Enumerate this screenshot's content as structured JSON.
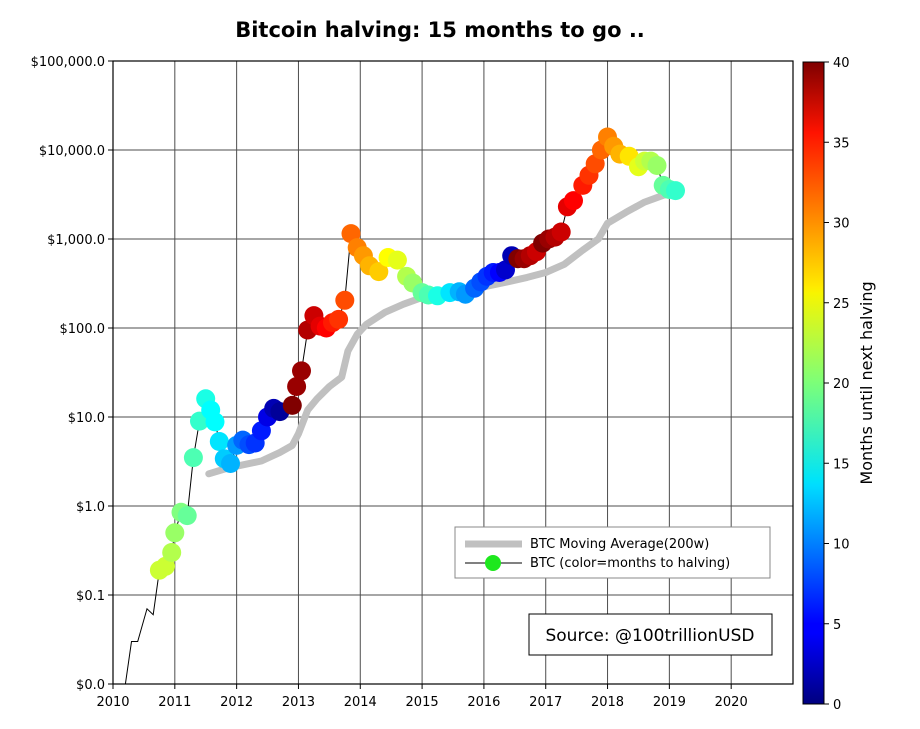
{
  "chart_data": {
    "type": "scatter",
    "title": "Bitcoin halving: 15 months to go ..",
    "y_scale": "log",
    "xlim": [
      2010.0,
      2021.0
    ],
    "ylim": [
      0.01,
      100000
    ],
    "x_ticks": [
      2010,
      2011,
      2012,
      2013,
      2014,
      2015,
      2016,
      2017,
      2018,
      2019,
      2020
    ],
    "x_tick_labels": [
      "2010",
      "2011",
      "2012",
      "2013",
      "2014",
      "2015",
      "2016",
      "2017",
      "2018",
      "2019",
      "2020"
    ],
    "y_ticks": [
      0.01,
      0.1,
      1,
      10,
      100,
      1000,
      10000,
      100000
    ],
    "y_tick_labels": [
      "$0.0",
      "$0.1",
      "$1.0",
      "$10.0",
      "$100.0",
      "$1,000.0",
      "$10,000.0",
      "$100,000.0"
    ],
    "grid": true,
    "colorbar": {
      "label": "Months until next halving",
      "range": [
        0,
        40
      ],
      "ticks": [
        0,
        5,
        10,
        15,
        20,
        25,
        30,
        35,
        40
      ],
      "tick_labels": [
        "0",
        "5",
        "10",
        "15",
        "20",
        "25",
        "30",
        "35",
        "40"
      ],
      "colormap": "jet"
    },
    "legend": {
      "position": "lower-right",
      "entries": [
        "BTC Moving Average(200w)",
        "BTC (color=months to halving)"
      ]
    },
    "annotation": "Source: @100trillionUSD",
    "series": [
      {
        "name": "BTC Moving Average(200w)",
        "kind": "line",
        "color": "#c0c0c0",
        "x": [
          2011.55,
          2011.8,
          2012.0,
          2012.4,
          2012.7,
          2012.9,
          2013.0,
          2013.15,
          2013.3,
          2013.5,
          2013.7,
          2013.8,
          2013.95,
          2014.1,
          2014.4,
          2014.7,
          2015.0,
          2015.3,
          2015.6,
          2016.0,
          2016.3,
          2016.7,
          2017.0,
          2017.3,
          2017.6,
          2017.85,
          2018.0,
          2018.3,
          2018.6,
          2018.9,
          2019.1
        ],
        "y": [
          2.3,
          2.6,
          2.8,
          3.2,
          4.0,
          4.8,
          6.5,
          12,
          16,
          22,
          28,
          55,
          85,
          110,
          150,
          185,
          220,
          240,
          260,
          290,
          320,
          370,
          420,
          520,
          750,
          1000,
          1500,
          2000,
          2600,
          3100,
          3300
        ]
      },
      {
        "name": "BTC (color=months to halving)",
        "kind": "scatter-line",
        "x": [
          2010.2,
          2010.3,
          2010.4,
          2010.55,
          2010.65,
          2010.75,
          2010.85,
          2010.95,
          2011.0,
          2011.1,
          2011.2,
          2011.3,
          2011.4,
          2011.5,
          2011.58,
          2011.65,
          2011.72,
          2011.8,
          2011.9,
          2012.0,
          2012.1,
          2012.2,
          2012.3,
          2012.4,
          2012.5,
          2012.6,
          2012.7,
          2012.9,
          2012.97,
          2013.05,
          2013.15,
          2013.25,
          2013.35,
          2013.45,
          2013.55,
          2013.65,
          2013.75,
          2013.85,
          2013.95,
          2014.05,
          2014.15,
          2014.3,
          2014.45,
          2014.6,
          2014.75,
          2014.85,
          2015.0,
          2015.1,
          2015.25,
          2015.45,
          2015.6,
          2015.7,
          2015.85,
          2015.95,
          2016.05,
          2016.15,
          2016.25,
          2016.35,
          2016.45,
          2016.55,
          2016.65,
          2016.75,
          2016.85,
          2016.95,
          2017.05,
          2017.15,
          2017.25,
          2017.35,
          2017.45,
          2017.6,
          2017.7,
          2017.8,
          2017.9,
          2018.0,
          2018.1,
          2018.2,
          2018.35,
          2018.5,
          2018.6,
          2018.7,
          2018.8,
          2018.9,
          2019.0,
          2019.1
        ],
        "y": [
          0.01,
          0.03,
          0.03,
          0.07,
          0.06,
          0.19,
          0.21,
          0.3,
          0.5,
          0.85,
          0.78,
          3.5,
          9,
          16,
          12,
          8.8,
          5.3,
          3.4,
          3.0,
          4.8,
          5.5,
          4.9,
          5.1,
          7.0,
          10,
          12.5,
          11.5,
          13.5,
          22,
          33,
          95,
          138,
          105,
          100,
          115,
          125,
          205,
          1150,
          800,
          650,
          500,
          430,
          620,
          580,
          380,
          320,
          250,
          235,
          230,
          250,
          255,
          240,
          280,
          330,
          380,
          420,
          420,
          450,
          650,
          600,
          600,
          650,
          720,
          900,
          1000,
          1050,
          1200,
          2300,
          2700,
          4000,
          5200,
          7000,
          10000,
          14000,
          11000,
          9000,
          8500,
          6500,
          7500,
          7500,
          6700,
          4000,
          3600,
          3500
        ],
        "months_to_halving": [
          20,
          20,
          20,
          20,
          21,
          23,
          23,
          22,
          21,
          20,
          19,
          18,
          17,
          16,
          15,
          15,
          14,
          13,
          12,
          11,
          9,
          8,
          7,
          6,
          4,
          2,
          1,
          40,
          39,
          39,
          38,
          37,
          36,
          35,
          34,
          33,
          32,
          31,
          30,
          29,
          28,
          27,
          25,
          24,
          22,
          21,
          19,
          18,
          16,
          14,
          12,
          11,
          9,
          8,
          7,
          6,
          5,
          3,
          2,
          40,
          39,
          38,
          37,
          40,
          39,
          38,
          37,
          36,
          35,
          34,
          33,
          32,
          31,
          30,
          29,
          28,
          26,
          24,
          23,
          22,
          21,
          19,
          18,
          17
        ]
      }
    ]
  }
}
